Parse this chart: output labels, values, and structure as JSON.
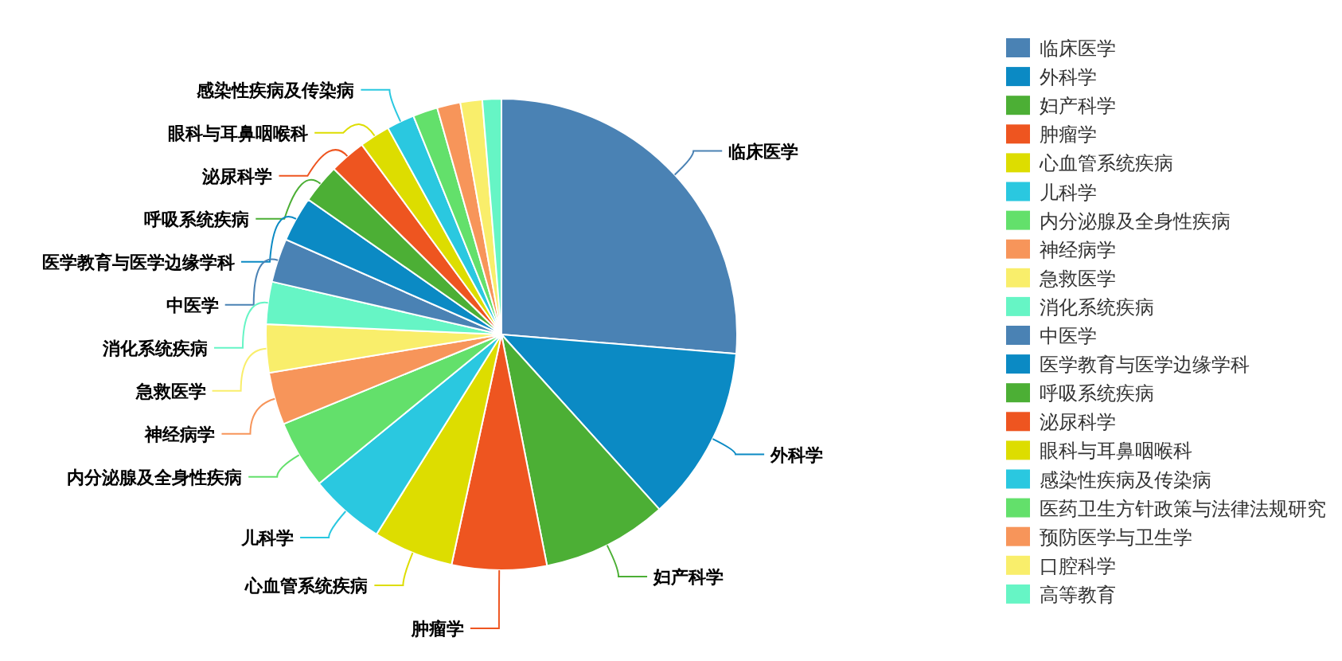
{
  "chart_data": {
    "type": "pie",
    "legend": "right",
    "categories": [
      "临床医学",
      "外科学",
      "妇产科学",
      "肿瘤学",
      "心血管系统疾病",
      "儿科学",
      "内分泌腺及全身性疾病",
      "神经病学",
      "急救医学",
      "消化系统疾病",
      "中医学",
      "医学教育与医学边缘学科",
      "呼吸系统疾病",
      "泌尿科学",
      "眼科与耳鼻咽喉科",
      "感染性疾病及传染病",
      "医药卫生方针政策与法律法规研究",
      "预防医学与卫生学",
      "口腔科学",
      "高等教育"
    ],
    "values": [
      26.3,
      12,
      8.6,
      6.5,
      5.5,
      5.2,
      4.7,
      3.6,
      3.3,
      2.9,
      3.0,
      3.1,
      2.7,
      2.5,
      2.1,
      1.9,
      1.7,
      1.6,
      1.5,
      1.3
    ],
    "colors": [
      "#4a82b4",
      "#0b8ac4",
      "#4caf35",
      "#ee5520",
      "#dddd00",
      "#2ac8e0",
      "#63e06b",
      "#f7955a",
      "#f9ee6b",
      "#66f5c5",
      "#4a82b4",
      "#0b8ac4",
      "#4caf35",
      "#ee5520",
      "#dddd00",
      "#2ac8e0",
      "#63e06b",
      "#f7955a",
      "#f9ee6b",
      "#66f5c5"
    ]
  }
}
